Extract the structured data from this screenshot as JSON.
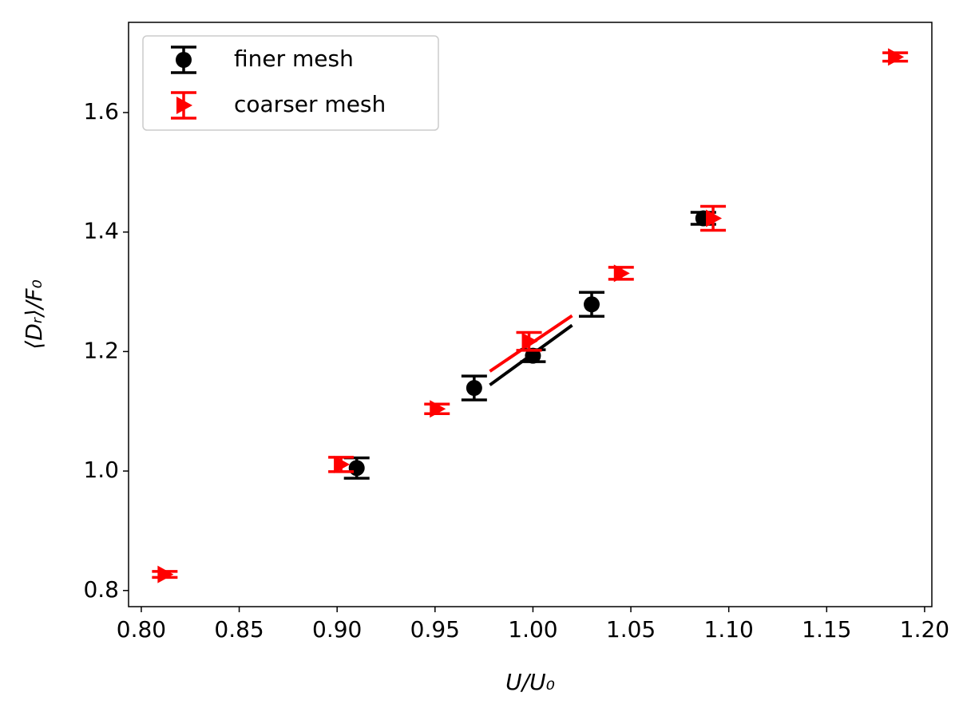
{
  "chart_data": {
    "type": "scatter",
    "xlabel": "U/U₀",
    "ylabel": "⟨Dᵣ⟩/F₀",
    "xlim": [
      0.7935,
      1.2037
    ],
    "ylim": [
      0.773,
      1.751
    ],
    "xticks": [
      {
        "value": 0.8,
        "label": "0.80"
      },
      {
        "value": 0.85,
        "label": "0.85"
      },
      {
        "value": 0.9,
        "label": "0.90"
      },
      {
        "value": 0.95,
        "label": "0.95"
      },
      {
        "value": 1.0,
        "label": "1.00"
      },
      {
        "value": 1.05,
        "label": "1.05"
      },
      {
        "value": 1.1,
        "label": "1.10"
      },
      {
        "value": 1.15,
        "label": "1.15"
      },
      {
        "value": 1.2,
        "label": "1.20"
      }
    ],
    "yticks": [
      0.8,
      {
        "value": 1.0,
        "label": "1.0"
      },
      1.2,
      1.4,
      1.6
    ],
    "legend": "upper left",
    "series": [
      {
        "name": "finer mesh",
        "color": "#000000",
        "marker": "circle",
        "x": [
          0.91,
          0.97,
          1.0,
          1.03,
          1.087
        ],
        "values": [
          1.005,
          1.139,
          1.193,
          1.279,
          1.423
        ],
        "errors": [
          0.017,
          0.02,
          0.01,
          0.02,
          0.01
        ]
      },
      {
        "name": "coarser mesh",
        "color": "#ff0000",
        "marker": "triangle-right",
        "x": [
          0.812,
          0.902,
          0.951,
          0.998,
          1.045,
          1.092,
          1.185
        ],
        "values": [
          0.827,
          1.011,
          1.104,
          1.217,
          1.331,
          1.423,
          1.693
        ],
        "errors": [
          0.005,
          0.012,
          0.008,
          0.015,
          0.01,
          0.02,
          0.007
        ]
      }
    ],
    "lines": [
      {
        "color": "#ff0000",
        "x": [
          0.978,
          1.02
        ],
        "values": [
          1.167,
          1.26
        ]
      },
      {
        "color": "#000000",
        "x": [
          0.978,
          1.02
        ],
        "values": [
          1.144,
          1.244
        ]
      }
    ]
  }
}
